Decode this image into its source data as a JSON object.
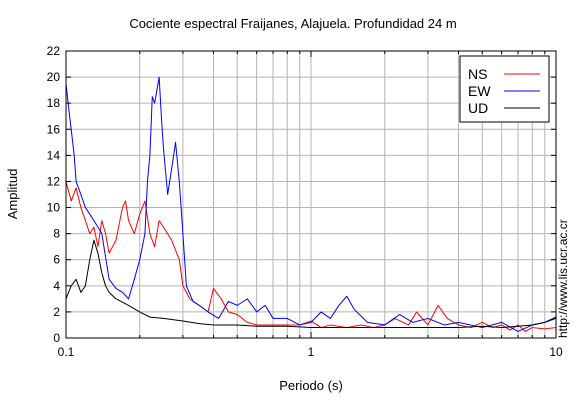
{
  "chart_data": {
    "type": "line",
    "title": "Cociente espectral Fraijanes, Alajuela. Profundidad 24 m",
    "xlabel": "Periodo (s)",
    "ylabel": "Amplitud",
    "xscale": "log",
    "xlim": [
      0.1,
      10
    ],
    "ylim": [
      0,
      22
    ],
    "x_tick_labels": [
      "0.1",
      "1",
      "10"
    ],
    "y_ticks": [
      0,
      2,
      4,
      6,
      8,
      10,
      12,
      14,
      16,
      18,
      20,
      22
    ],
    "grid": true,
    "legend_position": "top-right",
    "side_note": "http://www.lis.ucr.ac.cr",
    "series": [
      {
        "name": "NS",
        "color": "#ff0000",
        "x": [
          0.1,
          0.105,
          0.11,
          0.115,
          0.12,
          0.125,
          0.13,
          0.135,
          0.14,
          0.145,
          0.15,
          0.16,
          0.17,
          0.175,
          0.18,
          0.19,
          0.2,
          0.21,
          0.22,
          0.23,
          0.24,
          0.25,
          0.27,
          0.29,
          0.3,
          0.32,
          0.35,
          0.38,
          0.4,
          0.43,
          0.46,
          0.5,
          0.55,
          0.6,
          0.7,
          0.8,
          0.9,
          1.0,
          1.1,
          1.2,
          1.4,
          1.6,
          1.8,
          2.0,
          2.2,
          2.5,
          2.7,
          3.0,
          3.3,
          3.6,
          4.0,
          4.5,
          5.0,
          5.5,
          6.0,
          6.5,
          7.0,
          7.5,
          8.0,
          9.0,
          10.0
        ],
        "y": [
          12.0,
          10.5,
          11.5,
          10.0,
          9.0,
          8.0,
          8.5,
          7.0,
          9.0,
          8.0,
          6.5,
          7.5,
          10.0,
          10.5,
          9.0,
          8.0,
          9.5,
          10.5,
          8.0,
          7.0,
          9.0,
          8.5,
          7.5,
          6.0,
          4.0,
          3.0,
          2.5,
          2.0,
          3.8,
          3.0,
          2.0,
          1.8,
          1.2,
          1.0,
          1.0,
          1.0,
          1.0,
          1.3,
          0.8,
          1.0,
          0.8,
          1.0,
          0.8,
          1.0,
          1.5,
          1.0,
          2.0,
          1.0,
          2.5,
          1.5,
          1.0,
          0.8,
          1.2,
          0.8,
          1.0,
          0.6,
          1.0,
          0.5,
          0.8,
          0.7,
          0.8
        ]
      },
      {
        "name": "EW",
        "color": "#0000ff",
        "x": [
          0.1,
          0.102,
          0.105,
          0.108,
          0.11,
          0.115,
          0.12,
          0.125,
          0.13,
          0.135,
          0.14,
          0.15,
          0.16,
          0.17,
          0.18,
          0.19,
          0.2,
          0.21,
          0.215,
          0.22,
          0.225,
          0.23,
          0.235,
          0.24,
          0.245,
          0.25,
          0.26,
          0.27,
          0.28,
          0.29,
          0.3,
          0.31,
          0.33,
          0.35,
          0.38,
          0.42,
          0.46,
          0.5,
          0.55,
          0.6,
          0.65,
          0.7,
          0.8,
          0.9,
          1.0,
          1.1,
          1.2,
          1.3,
          1.4,
          1.5,
          1.7,
          2.0,
          2.3,
          2.6,
          3.0,
          3.5,
          4.0,
          5.0,
          6.0,
          7.0,
          8.0,
          9.0,
          10.0
        ],
        "y": [
          19.5,
          18.0,
          16.0,
          14.0,
          12.0,
          11.0,
          10.0,
          9.5,
          9.0,
          8.5,
          8.0,
          4.5,
          3.8,
          3.5,
          3.0,
          4.5,
          6.0,
          8.0,
          12.0,
          14.0,
          18.5,
          18.0,
          19.0,
          20.0,
          17.0,
          14.5,
          11.0,
          13.0,
          15.0,
          12.0,
          8.0,
          4.0,
          2.8,
          2.5,
          2.0,
          1.5,
          2.8,
          2.5,
          3.0,
          2.0,
          2.5,
          1.5,
          1.5,
          1.0,
          1.2,
          2.0,
          1.5,
          2.5,
          3.2,
          2.2,
          1.2,
          1.0,
          1.8,
          1.2,
          1.5,
          1.0,
          1.2,
          0.8,
          1.2,
          0.5,
          1.0,
          1.2,
          1.5
        ]
      },
      {
        "name": "UD",
        "color": "#000000",
        "x": [
          0.1,
          0.105,
          0.11,
          0.115,
          0.12,
          0.125,
          0.13,
          0.135,
          0.14,
          0.145,
          0.15,
          0.16,
          0.18,
          0.2,
          0.22,
          0.25,
          0.3,
          0.35,
          0.4,
          0.5,
          0.6,
          0.8,
          1.0,
          1.5,
          2.0,
          3.0,
          4.0,
          5.0,
          6.0,
          7.0,
          8.0,
          9.0,
          10.0
        ],
        "y": [
          3.0,
          4.0,
          4.5,
          3.5,
          4.0,
          6.0,
          7.5,
          6.5,
          5.0,
          4.0,
          3.5,
          3.0,
          2.5,
          2.0,
          1.6,
          1.5,
          1.3,
          1.1,
          1.0,
          1.0,
          0.9,
          0.9,
          0.8,
          0.8,
          0.8,
          0.8,
          0.8,
          0.9,
          0.8,
          0.9,
          1.0,
          1.2,
          1.6
        ]
      }
    ]
  }
}
